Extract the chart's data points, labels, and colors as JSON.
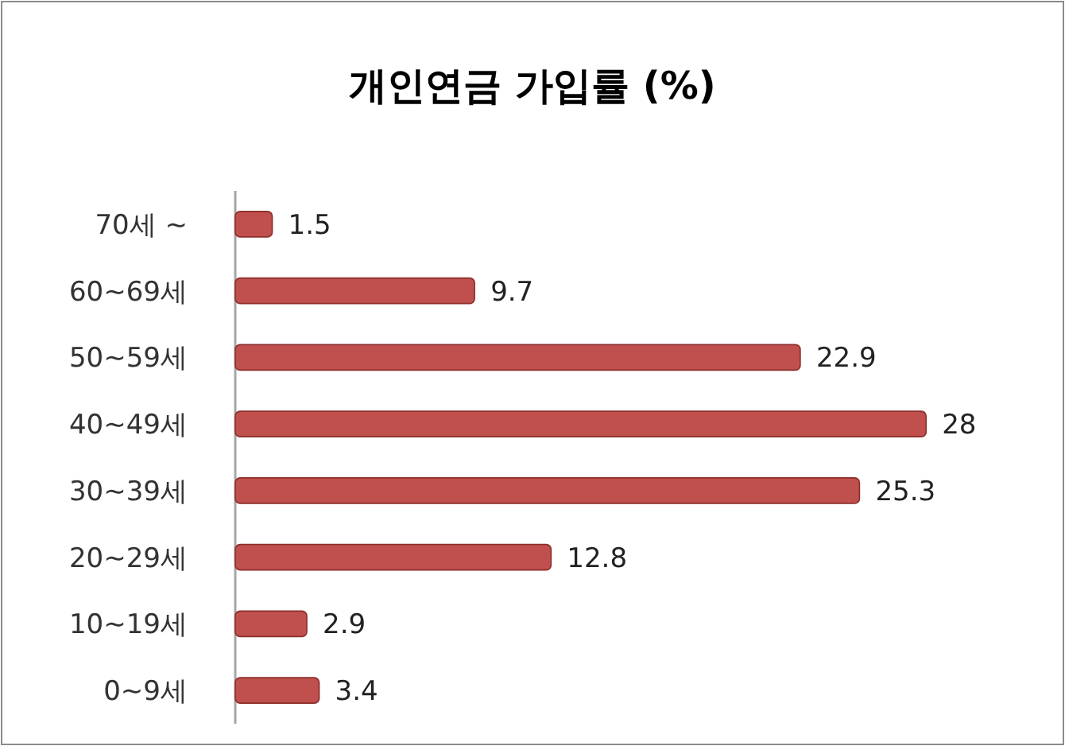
{
  "chart_data": {
    "type": "bar",
    "orientation": "horizontal",
    "title": "개인연금 가입률 (%)",
    "categories": [
      "70세 ~",
      "60~69세",
      "50~59세",
      "40~49세",
      "30~39세",
      "20~29세",
      "10~19세",
      "0~9세"
    ],
    "values": [
      1.5,
      9.7,
      22.9,
      28,
      25.3,
      12.8,
      2.9,
      3.4
    ],
    "color": "#c0504d",
    "data_labels": true
  }
}
